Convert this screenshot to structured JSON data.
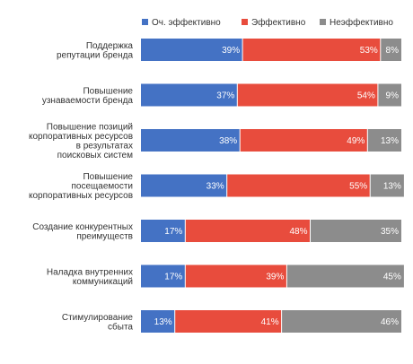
{
  "chart_data": {
    "type": "bar",
    "orientation": "horizontal",
    "stacked": true,
    "percent_stacked": true,
    "legend_position": "top",
    "grid": false,
    "xlim": [
      0,
      100
    ],
    "categories": [
      [
        "Поддержка",
        "репутации бренда"
      ],
      [
        "Повышение",
        "узнаваемости бренда"
      ],
      [
        "Повышение позиций",
        "корпоративных ресурсов",
        "в результатах",
        "поисковых систем"
      ],
      [
        "Повышение",
        "посещаемости",
        "корпоративных ресурсов"
      ],
      [
        "Создание конкурентных",
        "преимуществ"
      ],
      [
        "Наладка внутренних",
        "коммуникаций"
      ],
      [
        "Стимулирование",
        "сбыта"
      ]
    ],
    "series": [
      {
        "name": "Оч. эффективно",
        "color": "#4472c4",
        "values": [
          39,
          37,
          38,
          33,
          17,
          17,
          13
        ]
      },
      {
        "name": "Эффективно",
        "color": "#e84c3d",
        "values": [
          53,
          54,
          49,
          55,
          48,
          39,
          41
        ]
      },
      {
        "name": "Неэффективно",
        "color": "#8c8c8c",
        "values": [
          8,
          9,
          13,
          13,
          35,
          45,
          46
        ]
      }
    ],
    "value_suffix": "%"
  }
}
